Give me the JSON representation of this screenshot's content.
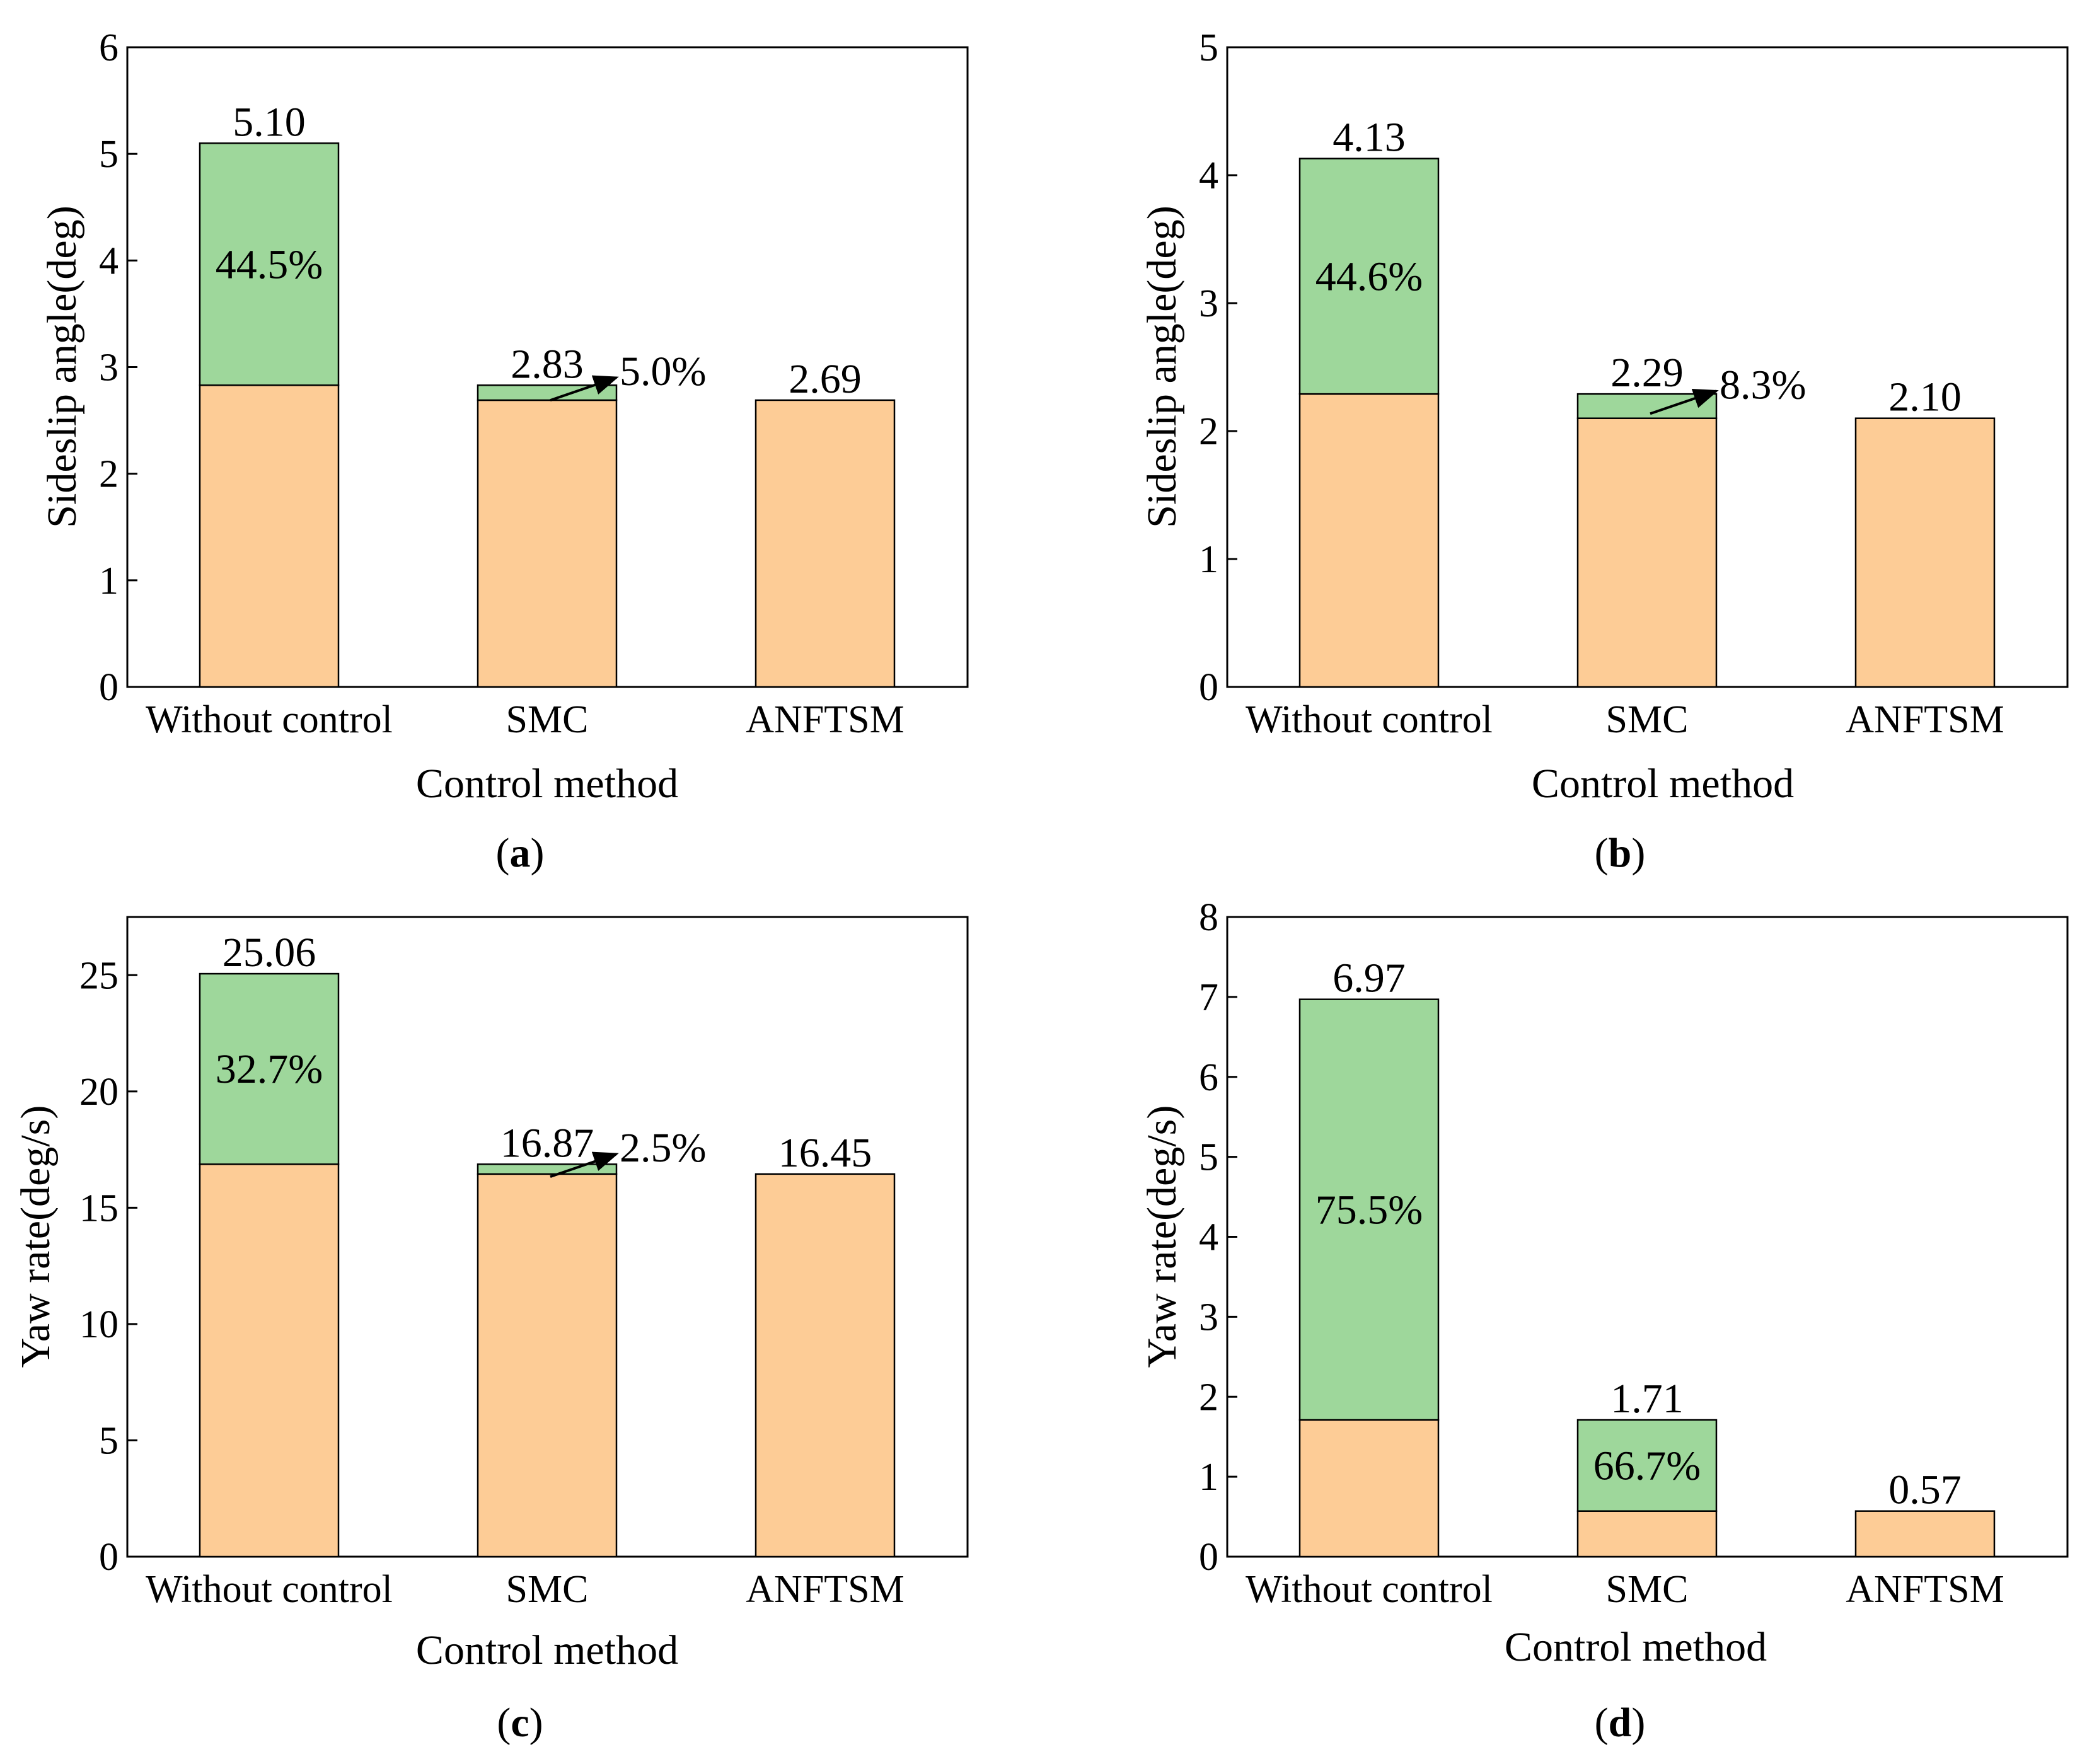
{
  "colors": {
    "base": "#FDCC96",
    "reduction": "#9ED79B"
  },
  "chart_data": [
    {
      "type": "bar",
      "stacked": true,
      "panel": {
        "open": "(",
        "letter": "a",
        "close": ")"
      },
      "xlabel": "Control method",
      "ylabel": "Sideslip angle(deg)",
      "ylim": [
        0,
        6
      ],
      "yticks": [
        "0",
        "1",
        "2",
        "3",
        "4",
        "5",
        "6"
      ],
      "categories": [
        "Without control",
        "SMC",
        "ANFTSM"
      ],
      "values": [
        5.1,
        2.83,
        2.69
      ],
      "value_labels": [
        "5.10",
        "2.83",
        "2.69"
      ],
      "reductions": [
        {
          "from": 0,
          "to_value": 2.83,
          "label": "44.5%",
          "style": "inside"
        },
        {
          "from": 1,
          "to_value": 2.69,
          "label": "5.0%",
          "style": "arrow"
        }
      ]
    },
    {
      "type": "bar",
      "stacked": true,
      "panel": {
        "open": "(",
        "letter": "b",
        "close": ")"
      },
      "xlabel": "Control method",
      "ylabel": "Sideslip angle(deg)",
      "ylim": [
        0,
        5
      ],
      "yticks": [
        "0",
        "1",
        "2",
        "3",
        "4",
        "5"
      ],
      "categories": [
        "Without control",
        "SMC",
        "ANFTSM"
      ],
      "values": [
        4.13,
        2.29,
        2.1
      ],
      "value_labels": [
        "4.13",
        "2.29",
        "2.10"
      ],
      "reductions": [
        {
          "from": 0,
          "to_value": 2.29,
          "label": "44.6%",
          "style": "inside"
        },
        {
          "from": 1,
          "to_value": 2.1,
          "label": "8.3%",
          "style": "arrow"
        }
      ]
    },
    {
      "type": "bar",
      "stacked": true,
      "panel": {
        "open": "(",
        "letter": "c",
        "close": ")"
      },
      "xlabel": "Control method",
      "ylabel": "Yaw rate(deg/s)",
      "ylim": [
        0,
        27.5
      ],
      "yticks": [
        "0",
        "5",
        "10",
        "15",
        "20",
        "25"
      ],
      "ytick_values": [
        0,
        5,
        10,
        15,
        20,
        25
      ],
      "categories": [
        "Without control",
        "SMC",
        "ANFTSM"
      ],
      "values": [
        25.06,
        16.87,
        16.45
      ],
      "value_labels": [
        "25.06",
        "16.87",
        "16.45"
      ],
      "reductions": [
        {
          "from": 0,
          "to_value": 16.87,
          "label": "32.7%",
          "style": "inside"
        },
        {
          "from": 1,
          "to_value": 16.45,
          "label": "2.5%",
          "style": "arrow"
        }
      ]
    },
    {
      "type": "bar",
      "stacked": true,
      "panel": {
        "open": "(",
        "letter": "d",
        "close": ")"
      },
      "xlabel": "Control method",
      "ylabel": "Yaw rate(deg/s)",
      "ylim": [
        0,
        8
      ],
      "yticks": [
        "0",
        "1",
        "2",
        "3",
        "4",
        "5",
        "6",
        "7",
        "8"
      ],
      "categories": [
        "Without control",
        "SMC",
        "ANFTSM"
      ],
      "values": [
        6.97,
        1.71,
        0.57
      ],
      "value_labels": [
        "6.97",
        "1.71",
        "0.57"
      ],
      "reductions": [
        {
          "from": 0,
          "to_value": 1.71,
          "label": "75.5%",
          "style": "inside"
        },
        {
          "from": 1,
          "to_value": 0.57,
          "label": "66.7%",
          "style": "inside"
        }
      ]
    }
  ]
}
